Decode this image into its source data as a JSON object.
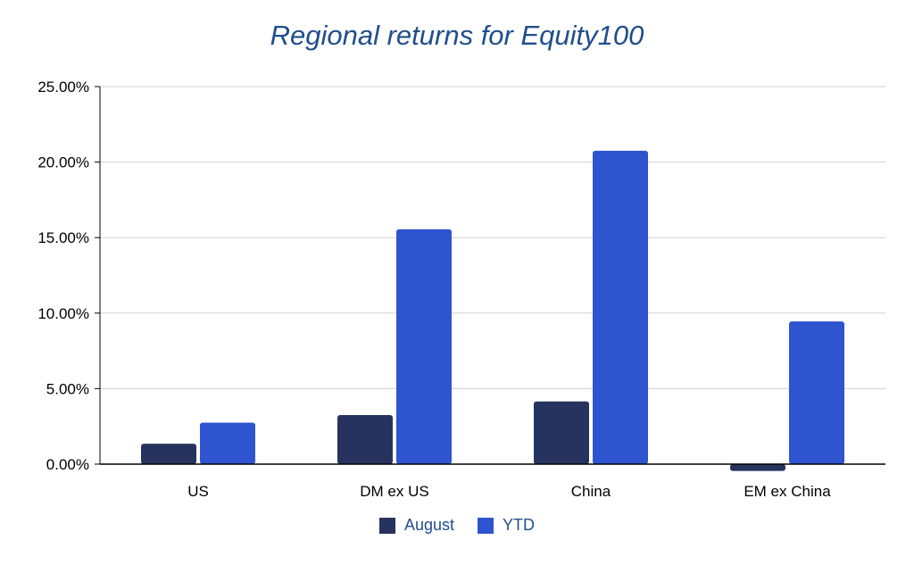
{
  "chart_data": {
    "type": "bar",
    "title": "Regional returns for Equity100",
    "categories": [
      "US",
      "DM ex US",
      "China",
      "EM ex China"
    ],
    "series": [
      {
        "name": "August",
        "values": [
          1.35,
          3.25,
          4.15,
          -0.45
        ],
        "color": "#26335e"
      },
      {
        "name": "YTD",
        "values": [
          2.75,
          15.55,
          20.75,
          9.45
        ],
        "color": "#2f54cf"
      }
    ],
    "yticks": [
      "0.00%",
      "5.00%",
      "10.00%",
      "15.00%",
      "20.00%",
      "25.00%"
    ],
    "ytick_values": [
      0,
      5,
      10,
      15,
      20,
      25
    ],
    "ylim": [
      0,
      25
    ],
    "ylabel": "",
    "xlabel": "",
    "grid": true,
    "legend_position": "bottom"
  }
}
